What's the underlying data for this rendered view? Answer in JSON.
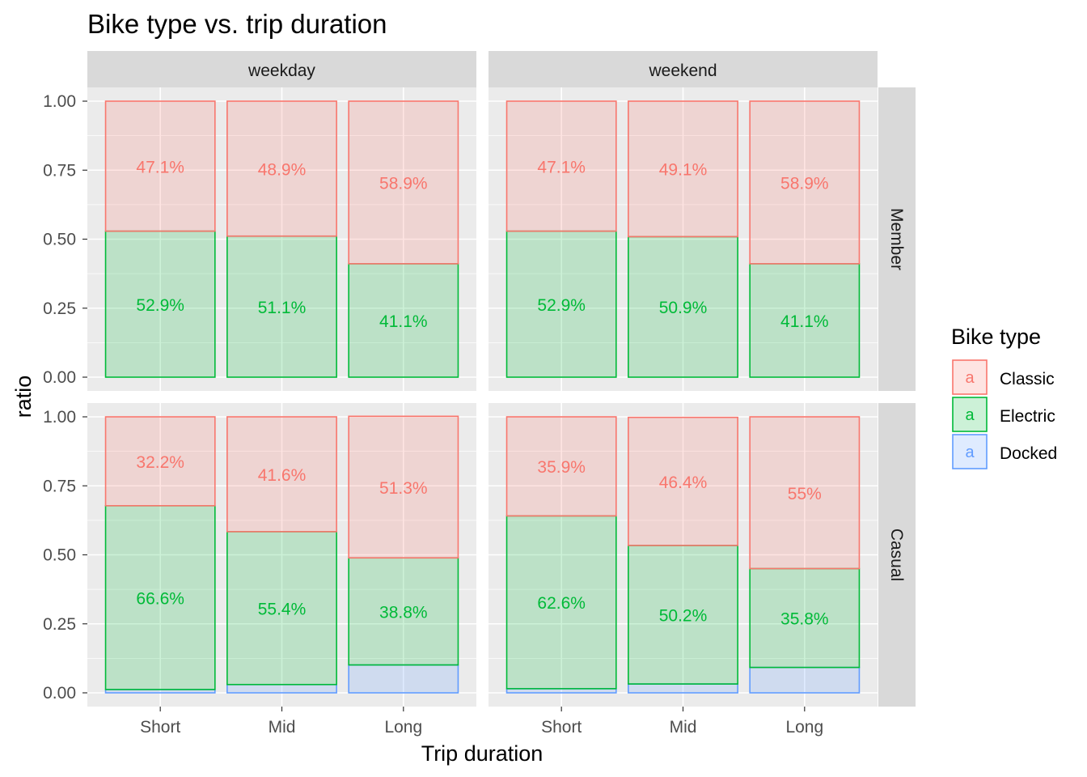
{
  "chart_data": {
    "type": "bar",
    "stacked": "fill",
    "title": "Bike type vs. trip duration",
    "xlabel": "Trip duration",
    "ylabel": "ratio",
    "ylim": [
      0,
      1
    ],
    "yticks": [
      "0.00",
      "0.25",
      "0.50",
      "0.75",
      "1.00"
    ],
    "categories": [
      "Short",
      "Mid",
      "Long"
    ],
    "facet_cols": [
      "weekday",
      "weekend"
    ],
    "facet_rows": [
      "Member",
      "Casual"
    ],
    "legend": {
      "title": "Bike type",
      "position": "right",
      "key_letter": "a",
      "items": [
        {
          "name": "Classic",
          "color": "#F8766D"
        },
        {
          "name": "Electric",
          "color": "#00BA38"
        },
        {
          "name": "Docked",
          "color": "#619CFF"
        }
      ]
    },
    "panels": [
      {
        "col": "weekday",
        "row": "Member",
        "series": [
          {
            "name": "Docked",
            "values": [
              0,
              0,
              0
            ]
          },
          {
            "name": "Electric",
            "values": [
              0.529,
              0.511,
              0.411
            ],
            "labels": [
              "52.9%",
              "51.1%",
              "41.1%"
            ]
          },
          {
            "name": "Classic",
            "values": [
              0.471,
              0.489,
              0.589
            ],
            "labels": [
              "47.1%",
              "48.9%",
              "58.9%"
            ]
          }
        ]
      },
      {
        "col": "weekend",
        "row": "Member",
        "series": [
          {
            "name": "Docked",
            "values": [
              0,
              0,
              0
            ]
          },
          {
            "name": "Electric",
            "values": [
              0.529,
              0.509,
              0.411
            ],
            "labels": [
              "52.9%",
              "50.9%",
              "41.1%"
            ]
          },
          {
            "name": "Classic",
            "values": [
              0.471,
              0.491,
              0.589
            ],
            "labels": [
              "47.1%",
              "49.1%",
              "58.9%"
            ]
          }
        ]
      },
      {
        "col": "weekday",
        "row": "Casual",
        "series": [
          {
            "name": "Docked",
            "values": [
              0.012,
              0.03,
              0.101
            ]
          },
          {
            "name": "Electric",
            "values": [
              0.666,
              0.554,
              0.388
            ],
            "labels": [
              "66.6%",
              "55.4%",
              "38.8%"
            ]
          },
          {
            "name": "Classic",
            "values": [
              0.322,
              0.416,
              0.513
            ],
            "labels": [
              "32.2%",
              "41.6%",
              "51.3%"
            ]
          }
        ]
      },
      {
        "col": "weekend",
        "row": "Casual",
        "series": [
          {
            "name": "Docked",
            "values": [
              0.015,
              0.032,
              0.092
            ]
          },
          {
            "name": "Electric",
            "values": [
              0.626,
              0.502,
              0.358
            ],
            "labels": [
              "62.6%",
              "50.2%",
              "35.8%"
            ]
          },
          {
            "name": "Classic",
            "values": [
              0.359,
              0.464,
              0.55
            ],
            "labels": [
              "35.9%",
              "46.4%",
              "55%"
            ]
          }
        ]
      }
    ]
  }
}
